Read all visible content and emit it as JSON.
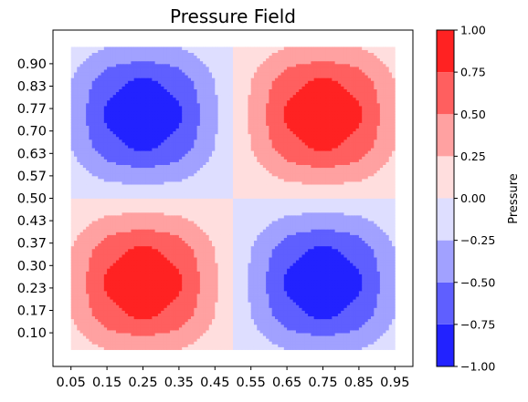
{
  "chart_data": {
    "type": "heatmap",
    "subtype": "filled-contour",
    "title": "Pressure Field",
    "xlabel": "",
    "ylabel": "",
    "function": "sin(2πx)·sin(2πy)",
    "x_grid": [
      0.05,
      0.15,
      0.25,
      0.35,
      0.45,
      0.55,
      0.65,
      0.75,
      0.85,
      0.95
    ],
    "y_grid": [
      0.05,
      0.15,
      0.25,
      0.35,
      0.45,
      0.55,
      0.65,
      0.75,
      0.85,
      0.95
    ],
    "x_ticks": [
      "0.05",
      "0.15",
      "0.25",
      "0.35",
      "0.45",
      "0.55",
      "0.65",
      "0.75",
      "0.85",
      "0.95"
    ],
    "y_ticks": [
      "0.10",
      "0.17",
      "0.23",
      "0.30",
      "0.37",
      "0.43",
      "0.50",
      "0.57",
      "0.63",
      "0.70",
      "0.77",
      "0.83",
      "0.90"
    ],
    "y_tick_values": [
      0.1,
      0.1667,
      0.2333,
      0.3,
      0.3667,
      0.4333,
      0.5,
      0.5667,
      0.6333,
      0.7,
      0.7667,
      0.8333,
      0.9
    ],
    "xlim": [
      0.0,
      1.0
    ],
    "ylim": [
      0.0,
      1.0
    ],
    "contour_levels": [
      -1.0,
      -0.75,
      -0.5,
      -0.25,
      0.0,
      0.25,
      0.5,
      0.75,
      1.0
    ],
    "band_colors": [
      "#2222ff",
      "#5f5fff",
      "#a1a1ff",
      "#dedeff",
      "#ffdede",
      "#ffa1a1",
      "#ff5f5f",
      "#ff2222"
    ],
    "colormap": "bwr",
    "colorbar": {
      "label": "Pressure",
      "ticks": [
        "−1.00",
        "−0.75",
        "−0.50",
        "−0.25",
        "0.00",
        "0.25",
        "0.50",
        "0.75",
        "1.00"
      ],
      "tick_values": [
        -1.0,
        -0.75,
        -0.5,
        -0.25,
        0.0,
        0.25,
        0.5,
        0.75,
        1.0
      ],
      "placement": "right"
    },
    "grid": false
  }
}
